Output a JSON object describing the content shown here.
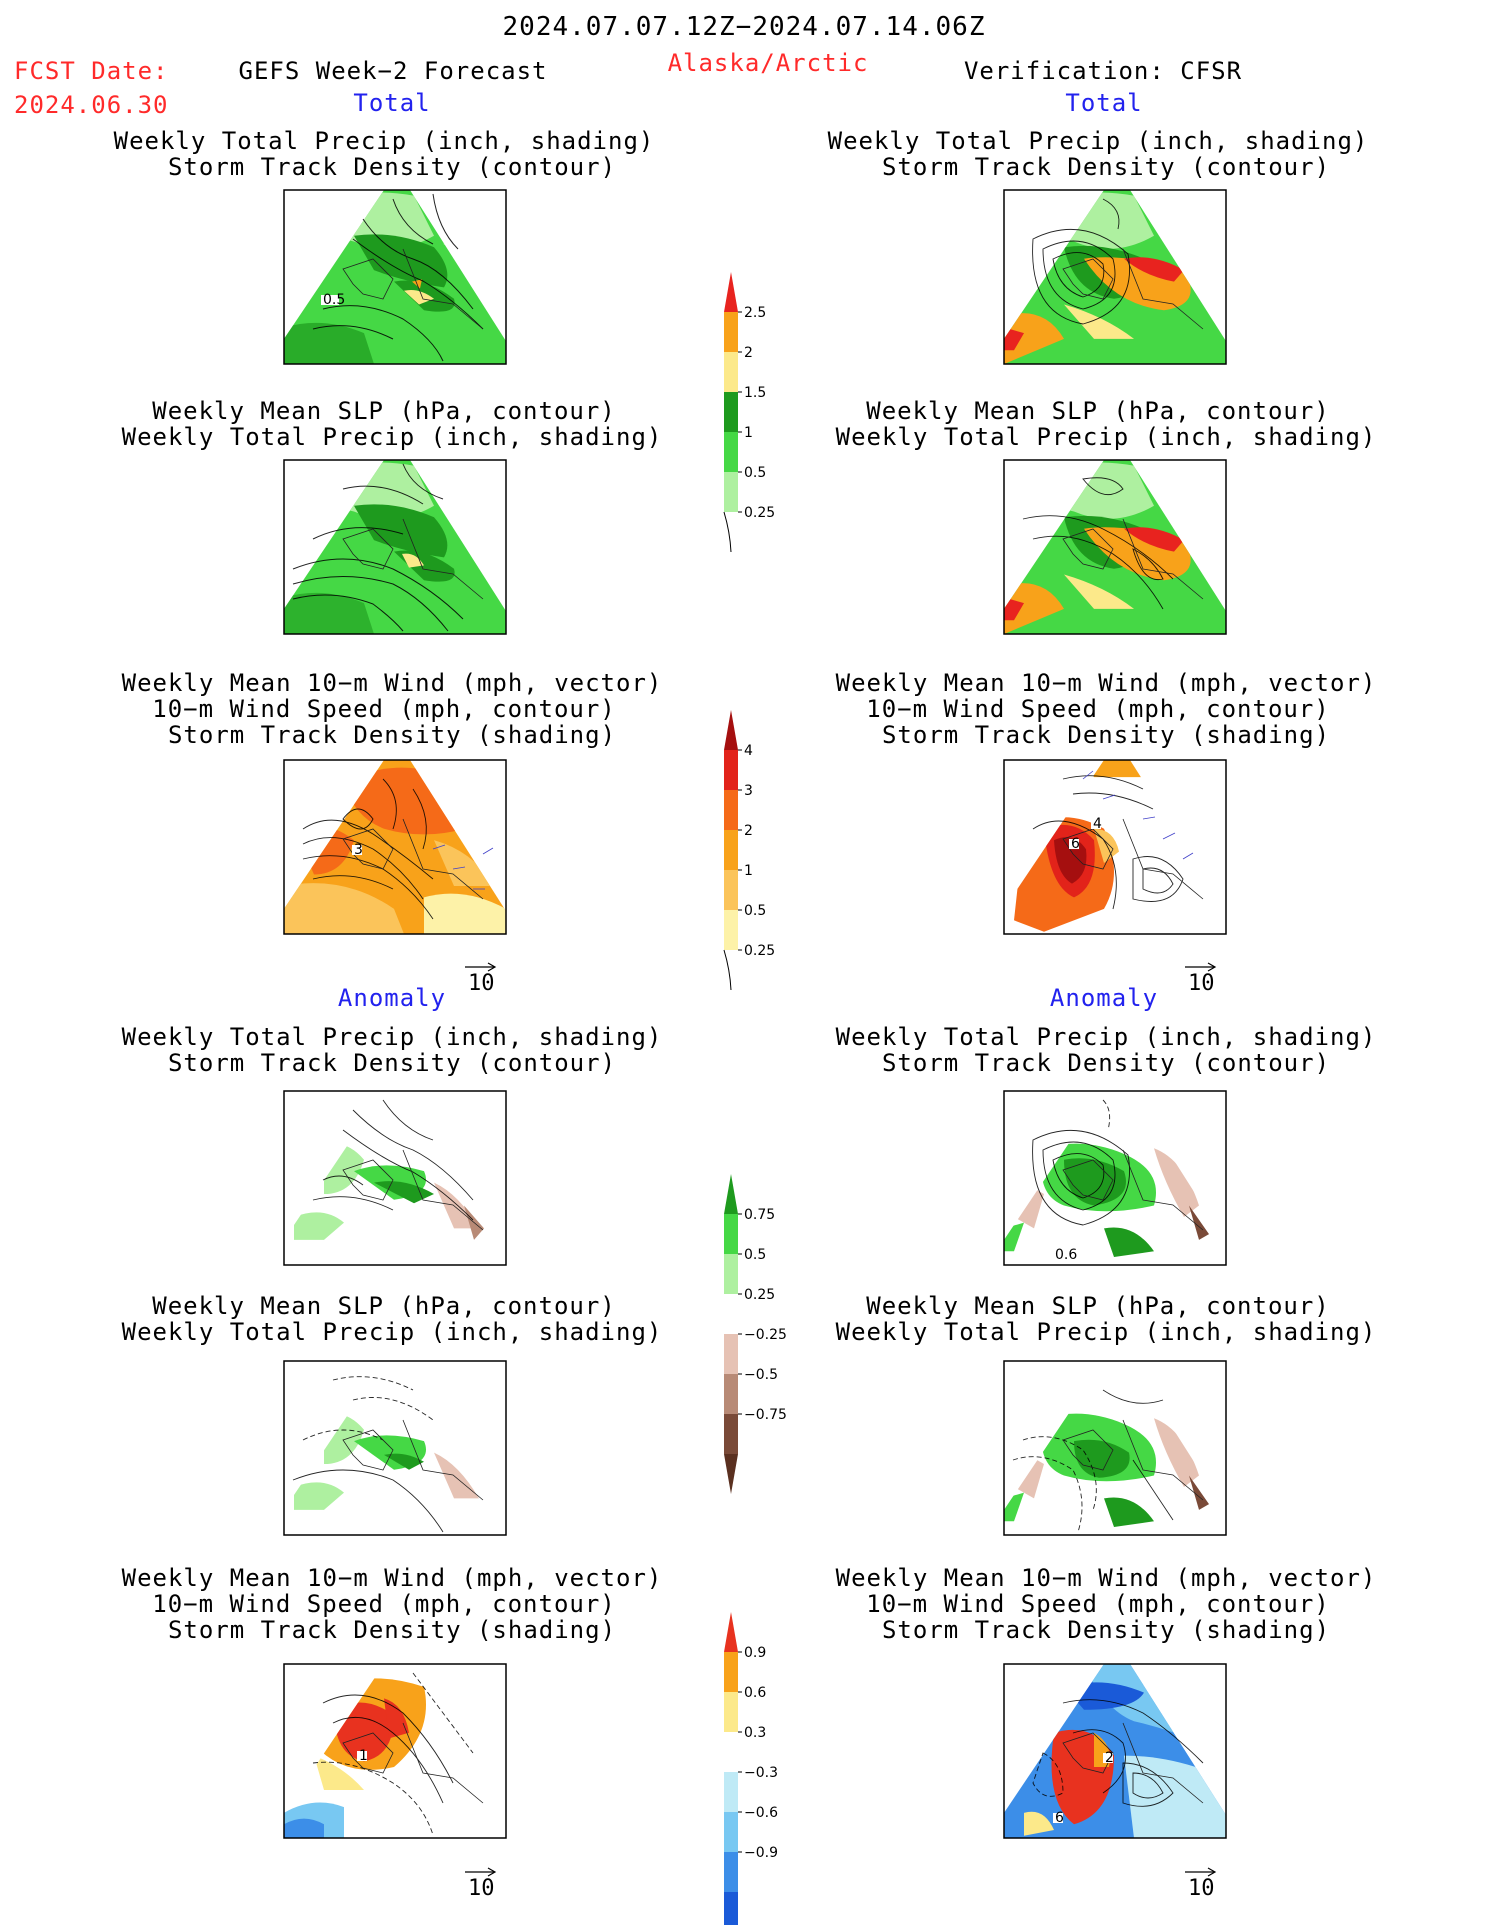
{
  "header": {
    "period": "2024.07.07.12Z−2024.07.14.06Z",
    "fcst_label": "FCST Date:",
    "fcst_date": "2024.06.30",
    "model": "GEFS Week−2 Forecast",
    "region": "Alaska/Arctic",
    "verification": "Verification: CFSR"
  },
  "sections": {
    "total": "Total",
    "anomaly": "Anomaly"
  },
  "titles": {
    "precip_track": [
      "Weekly Total Precip (inch, shading)",
      "Storm Track Density (contour)"
    ],
    "slp_precip": [
      "Weekly Mean SLP (hPa, contour)",
      "Weekly Total Precip (inch, shading)"
    ],
    "wind_track": [
      "Weekly Mean 10−m Wind (mph, vector)",
      "10−m Wind Speed (mph, contour)",
      "Storm Track Density (shading)"
    ]
  },
  "panel_labels": {
    "p1_left": "0.5",
    "p3_left": "3",
    "p3_right_a": "6",
    "p3_right_b": "4",
    "p4_right": "0.6",
    "p6_left": "1",
    "p6_right_a": "2",
    "p6_right_b": "6"
  },
  "vector_scale": "10",
  "colorbars": {
    "precip_total": {
      "ticks": [
        "2.5",
        "2",
        "1.5",
        "1",
        "0.5",
        "0.25"
      ],
      "colors": [
        "#e8231f",
        "#f8a21a",
        "#fce98a",
        "#1e9a1e",
        "#45d845",
        "#aef0a0"
      ]
    },
    "track_total": {
      "ticks": [
        "4",
        "3",
        "2",
        "1",
        "0.5",
        "0.25"
      ],
      "colors": [
        "#a50f0f",
        "#e2231a",
        "#f56a18",
        "#f8a21a",
        "#fbc45a",
        "#fdf2a8"
      ]
    },
    "precip_anom": {
      "ticks": [
        "0.75",
        "0.5",
        "0.25",
        "−0.25",
        "−0.5",
        "−0.75"
      ],
      "colors": [
        "#1e9a1e",
        "#45d845",
        "#aef0a0",
        "#ffffff",
        "#e6c2b4",
        "#b88a76",
        "#7a4a38"
      ]
    },
    "track_anom": {
      "ticks": [
        "0.9",
        "0.6",
        "0.3",
        "−0.3",
        "−0.6",
        "−0.9"
      ],
      "colors": [
        "#e8321f",
        "#f8a21a",
        "#fce98a",
        "#ffffff",
        "#bfeaf6",
        "#78c8f2",
        "#3c8ee8",
        "#1a5ad8"
      ]
    }
  }
}
